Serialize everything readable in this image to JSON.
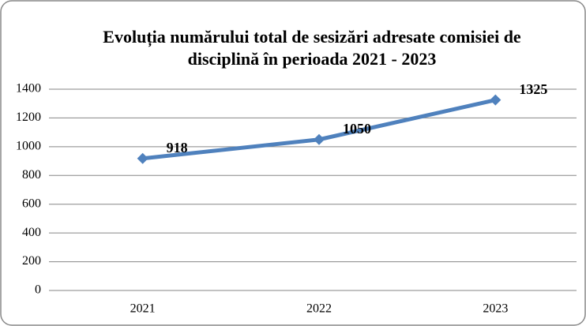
{
  "chart_data": {
    "type": "line",
    "title": "Evoluția numărului total de sesizări adresate comisiei de disciplină în perioada 2021 - 2023",
    "categories": [
      "2021",
      "2022",
      "2023"
    ],
    "series": [
      {
        "name": "Sesizări",
        "color": "#4f81bd",
        "values": [
          918,
          1050,
          1325
        ]
      }
    ],
    "ylim": [
      0,
      1400
    ],
    "yticks": [
      0,
      200,
      400,
      600,
      800,
      1000,
      1200,
      1400
    ],
    "grid": true
  }
}
